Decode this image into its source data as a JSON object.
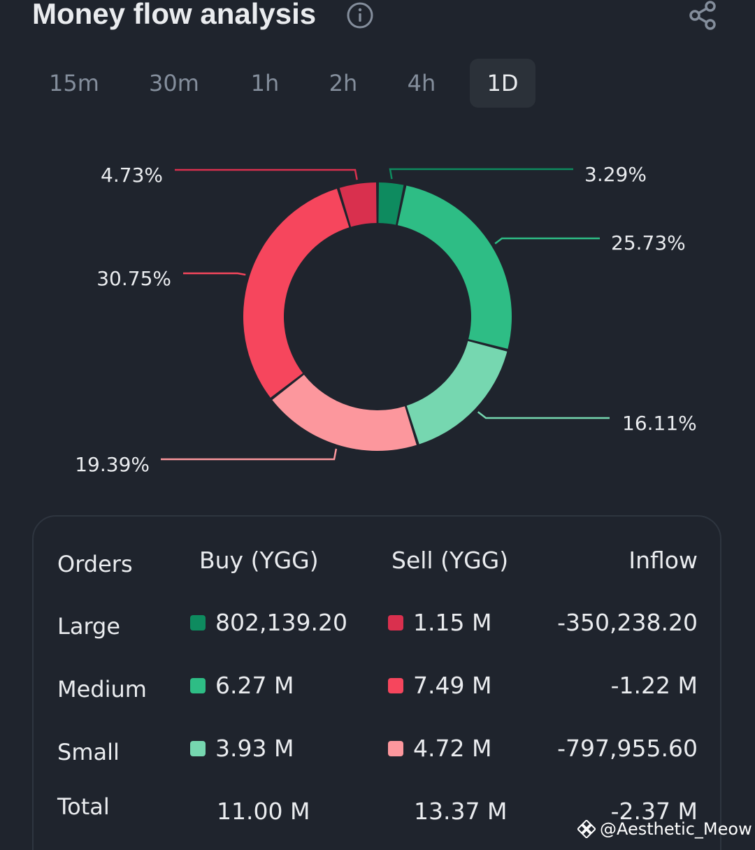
{
  "header": {
    "title": "Money flow analysis",
    "info_icon": "info-circle-icon",
    "share_icon": "share-icon"
  },
  "tabs": [
    {
      "label": "15m",
      "active": false
    },
    {
      "label": "30m",
      "active": false
    },
    {
      "label": "1h",
      "active": false
    },
    {
      "label": "2h",
      "active": false
    },
    {
      "label": "4h",
      "active": false
    },
    {
      "label": "1D",
      "active": true
    }
  ],
  "chart_data": {
    "type": "pie",
    "variant": "donut",
    "slices": [
      {
        "label": "Large buy",
        "value": 3.29,
        "display": "3.29%",
        "color": "#0e8b5f"
      },
      {
        "label": "Medium buy",
        "value": 25.73,
        "display": "25.73%",
        "color": "#2ebd85"
      },
      {
        "label": "Small buy",
        "value": 16.11,
        "display": "16.11%",
        "color": "#76d7b0"
      },
      {
        "label": "Small sell",
        "value": 19.39,
        "display": "19.39%",
        "color": "#fc979d"
      },
      {
        "label": "Medium sell",
        "value": 30.75,
        "display": "30.75%",
        "color": "#f6465d"
      },
      {
        "label": "Large sell",
        "value": 4.73,
        "display": "4.73%",
        "color": "#d9304e"
      }
    ]
  },
  "table": {
    "headers": {
      "orders": "Orders",
      "buy": "Buy (YGG)",
      "sell": "Sell (YGG)",
      "inflow": "Inflow"
    },
    "rows": [
      {
        "label": "Large",
        "buy": "802,139.20",
        "sell": "1.15 M",
        "inflow": "-350,238.20",
        "buy_color": "#0e8b5f",
        "sell_color": "#d9304e"
      },
      {
        "label": "Medium",
        "buy": "6.27 M",
        "sell": "7.49 M",
        "inflow": "-1.22 M",
        "buy_color": "#2ebd85",
        "sell_color": "#f6465d"
      },
      {
        "label": "Small",
        "buy": "3.93 M",
        "sell": "4.72 M",
        "inflow": "-797,955.60",
        "buy_color": "#76d7b0",
        "sell_color": "#fc979d"
      }
    ],
    "total": {
      "label": "Total",
      "buy": "11.00 M",
      "sell": "13.37 M",
      "inflow": "-2.37 M"
    }
  },
  "watermark": {
    "text": "@Aesthetic_Meow",
    "icon": "binance-logo-icon"
  }
}
